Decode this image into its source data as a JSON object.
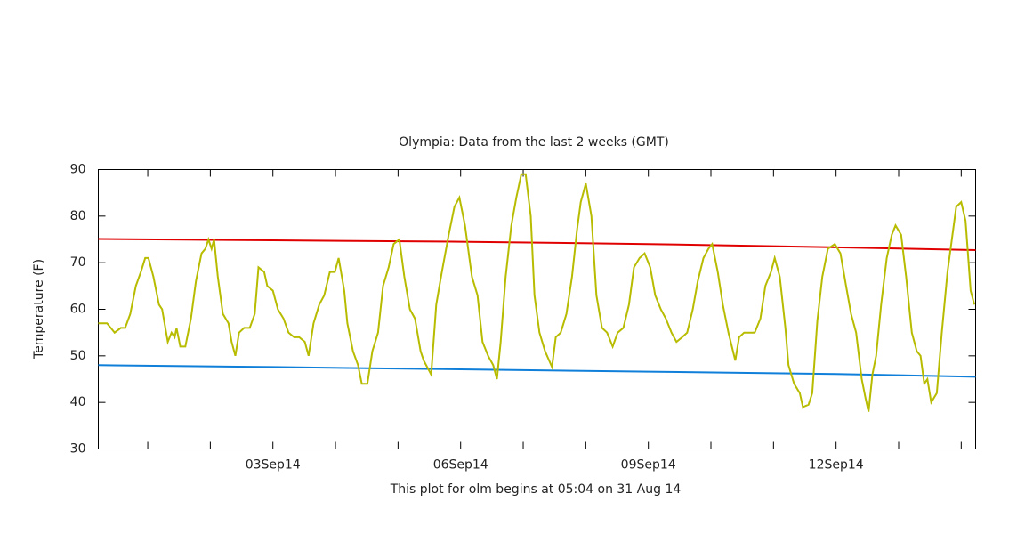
{
  "chart_data": {
    "type": "line",
    "title": "Olympia:  Data from the last 2 weeks (GMT)",
    "ylabel": "Temperature (F)",
    "xlabel": "This plot for olm begins at 05:04 on 31 Aug 14",
    "xlim": [
      0.21,
      14.23
    ],
    "ylim": [
      30,
      90
    ],
    "yticks": [
      30,
      40,
      50,
      60,
      70,
      80,
      90
    ],
    "xticks": [
      {
        "value": 1,
        "label": null
      },
      {
        "value": 2,
        "label": null
      },
      {
        "value": 3,
        "label": "03Sep14"
      },
      {
        "value": 4,
        "label": null
      },
      {
        "value": 5,
        "label": null
      },
      {
        "value": 6,
        "label": "06Sep14"
      },
      {
        "value": 7,
        "label": null
      },
      {
        "value": 8,
        "label": null
      },
      {
        "value": 9,
        "label": "09Sep14"
      },
      {
        "value": 10,
        "label": null
      },
      {
        "value": 11,
        "label": null
      },
      {
        "value": 12,
        "label": "12Sep14"
      },
      {
        "value": 13,
        "label": null
      },
      {
        "value": 14,
        "label": null
      }
    ],
    "series": [
      {
        "color": "#e00000",
        "x": [
          0.21,
          3,
          6,
          9,
          12,
          14.23
        ],
        "values": [
          75.1,
          74.8,
          74.5,
          74,
          73.3,
          72.7
        ]
      },
      {
        "color": "#0f7fd9",
        "x": [
          0.21,
          3,
          6,
          9,
          12,
          14.23
        ],
        "values": [
          48,
          47.6,
          47.1,
          46.6,
          46.1,
          45.5
        ]
      },
      {
        "color": "#b8bc00",
        "x": [
          0.21,
          0.35,
          0.47,
          0.57,
          0.64,
          0.72,
          0.81,
          0.89,
          0.96,
          1.01,
          1.09,
          1.18,
          1.23,
          1.32,
          1.38,
          1.43,
          1.46,
          1.52,
          1.6,
          1.69,
          1.77,
          1.86,
          1.92,
          1.97,
          2.02,
          2.06,
          2.12,
          2.2,
          2.29,
          2.34,
          2.4,
          2.46,
          2.54,
          2.63,
          2.71,
          2.77,
          2.86,
          2.91,
          3.0,
          3.08,
          3.17,
          3.25,
          3.34,
          3.42,
          3.51,
          3.57,
          3.65,
          3.74,
          3.82,
          3.91,
          3.99,
          4.05,
          4.14,
          4.19,
          4.28,
          4.36,
          4.42,
          4.51,
          4.59,
          4.68,
          4.76,
          4.85,
          4.93,
          5.02,
          5.1,
          5.19,
          5.27,
          5.36,
          5.41,
          5.53,
          5.61,
          5.7,
          5.81,
          5.9,
          5.98,
          6.07,
          6.18,
          6.27,
          6.35,
          6.44,
          6.52,
          6.58,
          6.64,
          6.72,
          6.81,
          6.89,
          6.97,
          7.04,
          7.12,
          7.18,
          7.26,
          7.35,
          7.46,
          7.52,
          7.6,
          7.69,
          7.78,
          7.86,
          7.92,
          8.0,
          8.09,
          8.17,
          8.26,
          8.34,
          8.43,
          8.51,
          8.6,
          8.69,
          8.77,
          8.86,
          8.94,
          9.03,
          9.11,
          9.2,
          9.28,
          9.37,
          9.45,
          9.54,
          9.62,
          9.71,
          9.79,
          9.88,
          9.96,
          10.02,
          10.11,
          10.19,
          10.28,
          10.39,
          10.45,
          10.53,
          10.62,
          10.7,
          10.79,
          10.87,
          10.96,
          11.02,
          11.1,
          11.19,
          11.24,
          11.33,
          11.42,
          11.47,
          11.56,
          11.62,
          11.7,
          11.78,
          11.87,
          11.98,
          12.07,
          12.16,
          12.24,
          12.32,
          12.41,
          12.47,
          12.52,
          12.58,
          12.64,
          12.72,
          12.81,
          12.89,
          12.95,
          13.04,
          13.12,
          13.21,
          13.29,
          13.35,
          13.41,
          13.46,
          13.52,
          13.61,
          13.69,
          13.78,
          13.86,
          13.92,
          14.0,
          14.07,
          14.15,
          14.21
        ],
        "values": [
          57,
          57,
          55,
          56,
          56,
          59,
          65,
          68,
          71,
          71,
          67,
          61,
          60,
          53,
          55,
          54,
          56,
          52,
          52,
          58,
          66,
          72,
          73,
          75,
          73,
          75,
          67,
          59,
          57,
          53,
          50,
          55,
          56,
          56,
          59,
          69,
          68,
          65,
          64,
          60,
          58,
          55,
          54,
          54,
          53,
          50,
          57,
          61,
          63,
          68,
          68,
          71,
          64,
          57,
          51,
          48,
          44,
          44,
          51,
          55,
          65,
          69,
          74,
          75,
          67,
          60,
          58,
          51,
          49,
          46,
          61,
          68,
          76,
          82,
          84,
          78,
          67,
          63,
          53,
          50,
          48,
          45,
          53,
          67,
          78,
          84,
          89,
          89,
          80,
          63,
          55,
          51,
          47.6,
          54,
          55,
          59,
          67,
          77,
          83,
          87,
          80,
          63,
          56,
          55,
          52,
          55,
          56,
          61,
          69,
          71,
          72,
          69,
          63,
          60,
          58,
          55,
          53,
          54,
          55,
          60,
          66,
          71,
          73,
          74,
          68,
          61,
          55,
          49,
          54,
          55,
          55,
          55,
          58,
          65,
          68,
          71,
          67,
          56,
          48,
          44,
          42,
          39,
          39.5,
          42,
          57.5,
          67,
          73,
          74,
          72,
          65,
          59,
          55,
          45,
          41,
          38,
          46,
          50,
          61,
          71,
          76,
          78,
          76,
          67,
          55,
          51,
          50,
          44,
          45,
          40,
          42,
          55,
          68,
          76,
          82,
          83,
          79,
          64,
          61
        ]
      }
    ]
  }
}
